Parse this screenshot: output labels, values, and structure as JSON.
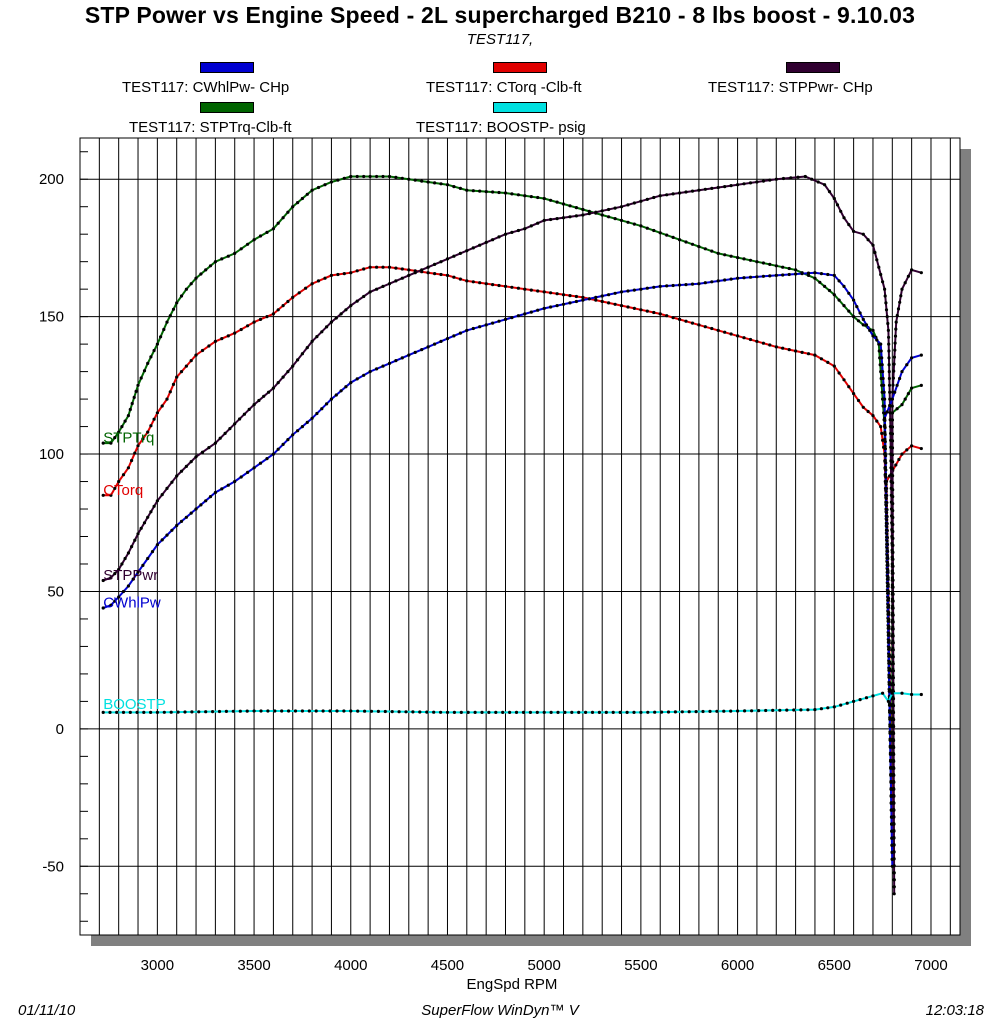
{
  "chart_data": {
    "type": "line",
    "title": "STP Power vs Engine Speed - 2L supercharged B210  - 8 lbs boost -  9.10.03",
    "subtitle": "TEST117,",
    "xlabel": "EngSpd  RPM",
    "ylabel": "",
    "xlim": [
      2600,
      7150
    ],
    "ylim": [
      -75,
      215
    ],
    "x_ticks": [
      3000,
      3500,
      4000,
      4500,
      5000,
      5500,
      6000,
      6500,
      7000
    ],
    "y_ticks": [
      -50,
      0,
      50,
      100,
      150,
      200
    ],
    "grid": true,
    "legend": [
      "TEST117: CWhlPw- CHp",
      "TEST117: CTorq -Clb-ft",
      "TEST117: STPPwr- CHp",
      "TEST117: STPTrq-Clb-ft",
      "TEST117: BOOSTP- psig"
    ],
    "series": [
      {
        "name": "STPTrq",
        "legend": "TEST117: STPTrq-Clb-ft",
        "color": "#006400",
        "points": [
          [
            2720,
            104
          ],
          [
            2760,
            104
          ],
          [
            2800,
            108
          ],
          [
            2850,
            114
          ],
          [
            2900,
            125
          ],
          [
            2950,
            133
          ],
          [
            3000,
            140
          ],
          [
            3050,
            148
          ],
          [
            3100,
            155
          ],
          [
            3150,
            160
          ],
          [
            3200,
            164
          ],
          [
            3300,
            170
          ],
          [
            3400,
            173
          ],
          [
            3500,
            178
          ],
          [
            3600,
            182
          ],
          [
            3700,
            190
          ],
          [
            3800,
            196
          ],
          [
            3900,
            199
          ],
          [
            4000,
            201
          ],
          [
            4100,
            201
          ],
          [
            4200,
            201
          ],
          [
            4300,
            200
          ],
          [
            4500,
            198
          ],
          [
            4600,
            196
          ],
          [
            4800,
            195
          ],
          [
            5000,
            193
          ],
          [
            5100,
            191
          ],
          [
            5300,
            187
          ],
          [
            5500,
            183
          ],
          [
            5700,
            178
          ],
          [
            5900,
            173
          ],
          [
            6100,
            170
          ],
          [
            6300,
            167
          ],
          [
            6400,
            164
          ],
          [
            6500,
            158
          ],
          [
            6600,
            150
          ],
          [
            6650,
            147
          ],
          [
            6700,
            145
          ],
          [
            6730,
            140
          ],
          [
            6760,
            110
          ],
          [
            6780,
            30
          ],
          [
            6800,
            -45
          ],
          [
            6800,
            115
          ],
          [
            6850,
            118
          ],
          [
            6900,
            124
          ],
          [
            6950,
            125
          ]
        ]
      },
      {
        "name": "CTorq",
        "legend": "TEST117: CTorq -Clb-ft",
        "color": "#e00000",
        "points": [
          [
            2720,
            85
          ],
          [
            2760,
            85
          ],
          [
            2800,
            90
          ],
          [
            2850,
            95
          ],
          [
            2900,
            103
          ],
          [
            2950,
            108
          ],
          [
            3000,
            115
          ],
          [
            3050,
            120
          ],
          [
            3100,
            128
          ],
          [
            3150,
            132
          ],
          [
            3200,
            136
          ],
          [
            3300,
            141
          ],
          [
            3400,
            144
          ],
          [
            3500,
            148
          ],
          [
            3600,
            151
          ],
          [
            3700,
            157
          ],
          [
            3800,
            162
          ],
          [
            3900,
            165
          ],
          [
            4000,
            166
          ],
          [
            4100,
            168
          ],
          [
            4200,
            168
          ],
          [
            4300,
            167
          ],
          [
            4400,
            166
          ],
          [
            4500,
            165
          ],
          [
            4600,
            163
          ],
          [
            4800,
            161
          ],
          [
            5000,
            159
          ],
          [
            5200,
            157
          ],
          [
            5400,
            154
          ],
          [
            5600,
            151
          ],
          [
            5800,
            147
          ],
          [
            6000,
            143
          ],
          [
            6200,
            139
          ],
          [
            6400,
            136
          ],
          [
            6500,
            132
          ],
          [
            6550,
            127
          ],
          [
            6600,
            122
          ],
          [
            6650,
            117
          ],
          [
            6700,
            114
          ],
          [
            6740,
            110
          ],
          [
            6760,
            100
          ],
          [
            6780,
            50
          ],
          [
            6800,
            -40
          ],
          [
            6770,
            90
          ],
          [
            6850,
            100
          ],
          [
            6900,
            103
          ],
          [
            6950,
            102
          ]
        ]
      },
      {
        "name": "STPPwr",
        "legend": "TEST117: STPPwr- CHp",
        "color": "#300030",
        "points": [
          [
            2720,
            54
          ],
          [
            2760,
            55
          ],
          [
            2800,
            58
          ],
          [
            2850,
            64
          ],
          [
            2900,
            71
          ],
          [
            2950,
            77
          ],
          [
            3000,
            83
          ],
          [
            3100,
            92
          ],
          [
            3200,
            99
          ],
          [
            3300,
            104
          ],
          [
            3400,
            111
          ],
          [
            3500,
            118
          ],
          [
            3600,
            124
          ],
          [
            3700,
            132
          ],
          [
            3800,
            141
          ],
          [
            3900,
            148
          ],
          [
            4000,
            154
          ],
          [
            4100,
            159
          ],
          [
            4200,
            162
          ],
          [
            4300,
            165
          ],
          [
            4400,
            168
          ],
          [
            4500,
            171
          ],
          [
            4600,
            174
          ],
          [
            4700,
            177
          ],
          [
            4800,
            180
          ],
          [
            4900,
            182
          ],
          [
            5000,
            185
          ],
          [
            5200,
            187
          ],
          [
            5400,
            190
          ],
          [
            5600,
            194
          ],
          [
            5800,
            196
          ],
          [
            6000,
            198
          ],
          [
            6200,
            200
          ],
          [
            6350,
            201
          ],
          [
            6450,
            198
          ],
          [
            6500,
            193
          ],
          [
            6550,
            186
          ],
          [
            6600,
            181
          ],
          [
            6650,
            180
          ],
          [
            6700,
            176
          ],
          [
            6730,
            168
          ],
          [
            6760,
            160
          ],
          [
            6780,
            145
          ],
          [
            6790,
            110
          ],
          [
            6800,
            60
          ],
          [
            6810,
            -60
          ],
          [
            6800,
            120
          ],
          [
            6820,
            148
          ],
          [
            6850,
            160
          ],
          [
            6900,
            167
          ],
          [
            6950,
            166
          ]
        ]
      },
      {
        "name": "CWhlPw",
        "legend": "TEST117: CWhlPw- CHp",
        "color": "#0000d0",
        "points": [
          [
            2720,
            44
          ],
          [
            2760,
            45
          ],
          [
            2800,
            48
          ],
          [
            2850,
            52
          ],
          [
            2900,
            57
          ],
          [
            2950,
            62
          ],
          [
            3000,
            67
          ],
          [
            3100,
            74
          ],
          [
            3200,
            80
          ],
          [
            3300,
            86
          ],
          [
            3400,
            90
          ],
          [
            3500,
            95
          ],
          [
            3600,
            100
          ],
          [
            3700,
            107
          ],
          [
            3800,
            113
          ],
          [
            3900,
            120
          ],
          [
            4000,
            126
          ],
          [
            4100,
            130
          ],
          [
            4200,
            133
          ],
          [
            4300,
            136
          ],
          [
            4400,
            139
          ],
          [
            4500,
            142
          ],
          [
            4600,
            145
          ],
          [
            4700,
            147
          ],
          [
            4800,
            149
          ],
          [
            5000,
            153
          ],
          [
            5200,
            156
          ],
          [
            5400,
            159
          ],
          [
            5600,
            161
          ],
          [
            5800,
            162
          ],
          [
            6000,
            164
          ],
          [
            6200,
            165
          ],
          [
            6400,
            166
          ],
          [
            6500,
            165
          ],
          [
            6550,
            161
          ],
          [
            6600,
            156
          ],
          [
            6650,
            149
          ],
          [
            6700,
            143
          ],
          [
            6740,
            140
          ],
          [
            6760,
            120
          ],
          [
            6780,
            40
          ],
          [
            6800,
            -50
          ],
          [
            6760,
            113
          ],
          [
            6800,
            120
          ],
          [
            6850,
            130
          ],
          [
            6900,
            135
          ],
          [
            6950,
            136
          ]
        ]
      },
      {
        "name": "BOOSTP",
        "legend": "TEST117: BOOSTP- psig",
        "color": "#00e0e0",
        "points": [
          [
            2720,
            6
          ],
          [
            3000,
            6
          ],
          [
            3500,
            6.5
          ],
          [
            4000,
            6.5
          ],
          [
            4500,
            6
          ],
          [
            5000,
            6
          ],
          [
            5500,
            6
          ],
          [
            6000,
            6.5
          ],
          [
            6400,
            7
          ],
          [
            6500,
            8
          ],
          [
            6600,
            10
          ],
          [
            6700,
            12
          ],
          [
            6750,
            13
          ],
          [
            6780,
            10
          ],
          [
            6800,
            13
          ],
          [
            6850,
            13
          ],
          [
            6900,
            12.5
          ],
          [
            6950,
            12.5
          ]
        ]
      }
    ],
    "inline_labels": [
      {
        "text": "STPTrq",
        "color": "#006400",
        "x": 2720,
        "y": 106
      },
      {
        "text": "CTorq",
        "color": "#e00000",
        "x": 2720,
        "y": 87
      },
      {
        "text": "STPPwr",
        "color": "#300030",
        "x": 2720,
        "y": 56
      },
      {
        "text": "CWhlPw",
        "color": "#0000d0",
        "x": 2720,
        "y": 46
      },
      {
        "text": "BOOSTP",
        "color": "#00e0e0",
        "x": 2720,
        "y": 9
      }
    ]
  },
  "footer": {
    "left": "01/11/10",
    "center": "SuperFlow WinDyn™ V",
    "right": "12:03:18"
  }
}
